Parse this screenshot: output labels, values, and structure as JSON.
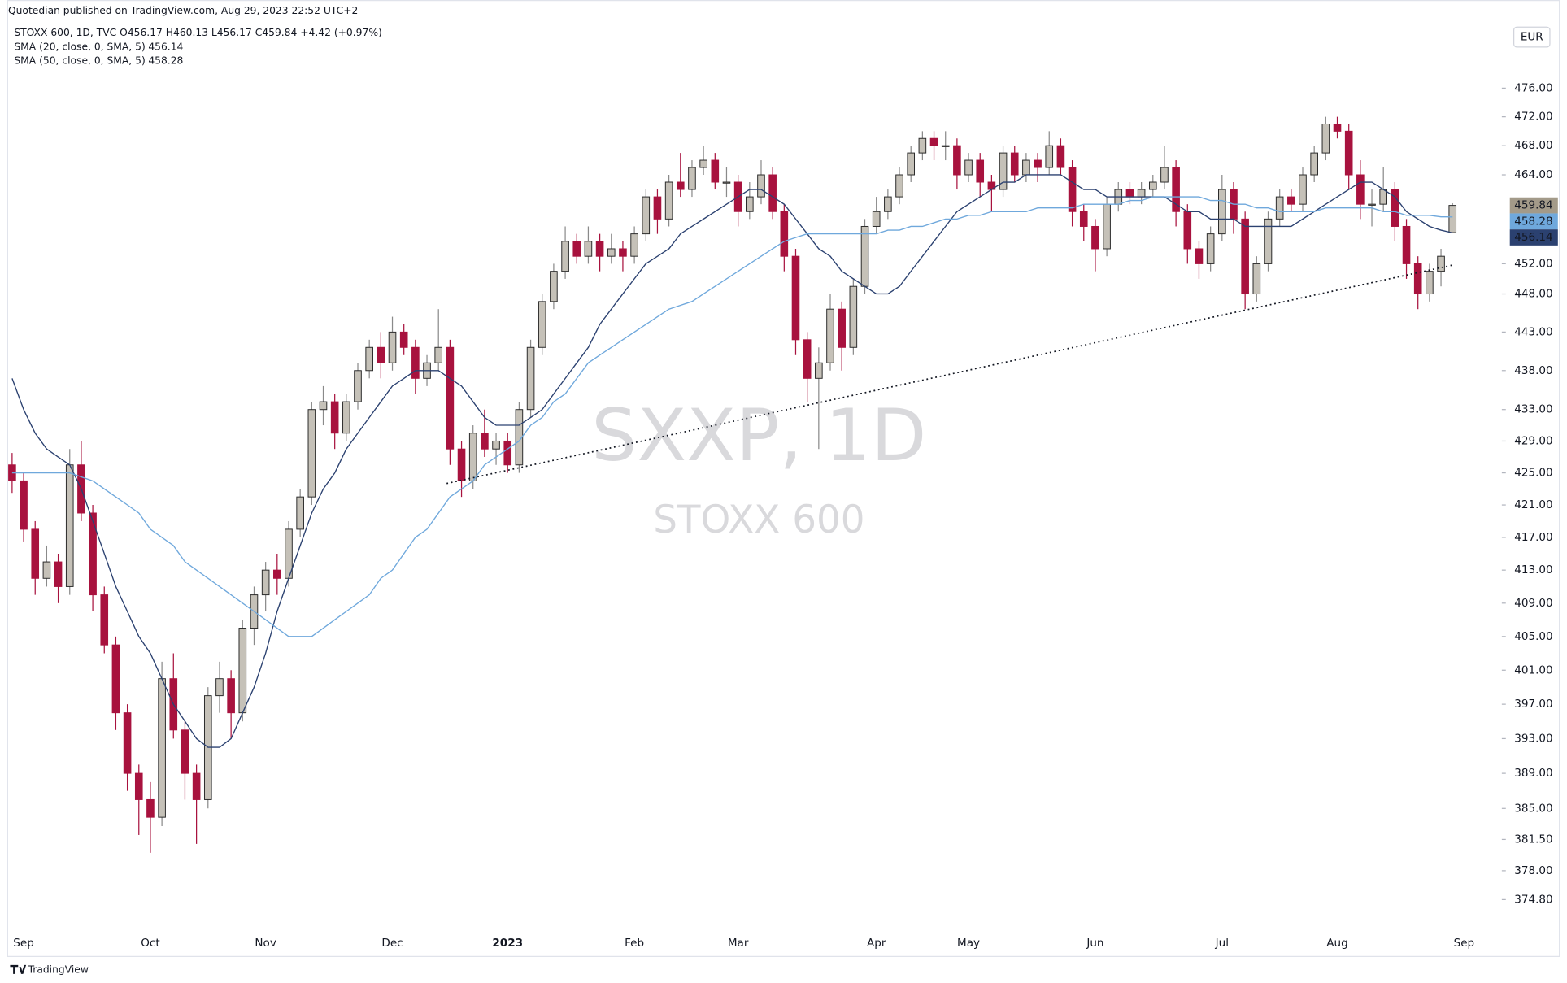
{
  "header": {
    "published": "Quotedian published on TradingView.com, Aug 29, 2023 22:52 UTC+2",
    "symbol_line": "STOXX 600, 1D, TVC  O456.17  H460.13  L456.17  C459.84  +4.42 (+0.97%)"
  },
  "footer": {
    "brand": "TradingView"
  },
  "chart_data": {
    "type": "candlestick",
    "watermark": "SXXP, 1D",
    "watermark_subtitle": "STOXX 600",
    "currency": "EUR",
    "log_scale": true,
    "grid": false,
    "up_color": "#c5c1b8",
    "down_color": "#a8123e",
    "tag_color": "#a39a89",
    "ylim": [
      371.9,
      487.8
    ],
    "yticks": [
      {
        "value": 476,
        "label": "476.00"
      },
      {
        "value": 472,
        "label": "472.00"
      },
      {
        "value": 468,
        "label": "468.00"
      },
      {
        "value": 464,
        "label": "464.00"
      },
      {
        "value": 452,
        "label": "452.00"
      },
      {
        "value": 448,
        "label": "448.00"
      },
      {
        "value": 443,
        "label": "443.00"
      },
      {
        "value": 438,
        "label": "438.00"
      },
      {
        "value": 433,
        "label": "433.00"
      },
      {
        "value": 429,
        "label": "429.00"
      },
      {
        "value": 425,
        "label": "425.00"
      },
      {
        "value": 421,
        "label": "421.00"
      },
      {
        "value": 417,
        "label": "417.00"
      },
      {
        "value": 413,
        "label": "413.00"
      },
      {
        "value": 409,
        "label": "409.00"
      },
      {
        "value": 405,
        "label": "405.00"
      },
      {
        "value": 401,
        "label": "401.00"
      },
      {
        "value": 397,
        "label": "397.00"
      },
      {
        "value": 393,
        "label": "393.00"
      },
      {
        "value": 389,
        "label": "389.00"
      },
      {
        "value": 385,
        "label": "385.00"
      },
      {
        "value": 381.5,
        "label": "381.50"
      },
      {
        "value": 378,
        "label": "378.00"
      },
      {
        "value": 374.8,
        "label": "374.80"
      }
    ],
    "categories": [
      null,
      "Sep",
      null,
      null,
      null,
      null,
      null,
      null,
      null,
      null,
      null,
      null,
      "Oct",
      null,
      null,
      null,
      null,
      null,
      null,
      null,
      null,
      null,
      "Nov",
      null,
      null,
      null,
      null,
      null,
      null,
      null,
      null,
      null,
      null,
      "Dec",
      null,
      null,
      null,
      null,
      null,
      null,
      null,
      null,
      null,
      "2023",
      null,
      null,
      null,
      null,
      null,
      null,
      null,
      null,
      null,
      null,
      "Feb",
      null,
      null,
      null,
      null,
      null,
      null,
      null,
      null,
      "Mar",
      null,
      null,
      null,
      null,
      null,
      null,
      null,
      null,
      null,
      null,
      null,
      "Apr",
      null,
      null,
      null,
      null,
      null,
      null,
      null,
      "May",
      null,
      null,
      null,
      null,
      null,
      null,
      null,
      null,
      null,
      null,
      "Jun",
      null,
      null,
      null,
      null,
      null,
      null,
      null,
      null,
      null,
      null,
      "Jul",
      null,
      null,
      null,
      null,
      null,
      null,
      null,
      null,
      null,
      "Aug",
      null,
      null,
      null,
      null,
      null,
      null,
      null,
      null,
      null,
      null,
      "Sep"
    ],
    "open": [
      426,
      424,
      418,
      412,
      414,
      411,
      426,
      420,
      410,
      404,
      396,
      389,
      386,
      384,
      400,
      394,
      389,
      386,
      398,
      400,
      396,
      406,
      410,
      413,
      412,
      418,
      422,
      433,
      434,
      430,
      434,
      438,
      441,
      439,
      443,
      441,
      437,
      439,
      441,
      428,
      424,
      430,
      428,
      429,
      426,
      433,
      441,
      447,
      451,
      455,
      453,
      455,
      453,
      454,
      453,
      456,
      461,
      458,
      463,
      462,
      465,
      466,
      463,
      463,
      459,
      461,
      464,
      459,
      453,
      442,
      437,
      439,
      446,
      441,
      449,
      457,
      459,
      461,
      464,
      467,
      469,
      468,
      468,
      464,
      466,
      463,
      462,
      467,
      464,
      466,
      465,
      468,
      465,
      459,
      457,
      454,
      460,
      462,
      461,
      462,
      463,
      465,
      459,
      454,
      452,
      456,
      462,
      458,
      448,
      452,
      458,
      461,
      460,
      464,
      467,
      471,
      470,
      464,
      460,
      460,
      462,
      457,
      452,
      448,
      451,
      456.17,
      null
    ],
    "high": [
      427.5,
      425,
      419,
      416,
      415,
      428,
      429,
      421,
      411,
      405,
      397,
      390,
      388,
      402,
      403,
      395,
      390,
      399,
      402,
      401,
      407,
      411,
      414,
      415,
      419,
      423,
      434,
      436,
      435,
      435,
      439,
      442,
      443,
      445,
      444,
      442,
      440,
      446,
      442,
      429,
      431,
      433,
      430,
      430,
      434,
      442,
      448,
      452,
      457,
      456,
      457,
      456,
      456,
      455,
      457,
      462,
      462,
      464,
      467,
      466,
      468,
      467,
      465,
      464,
      463,
      466,
      465,
      460,
      454,
      443,
      441,
      448,
      447,
      450,
      458,
      461,
      462,
      465,
      468,
      470,
      470,
      470,
      469,
      467,
      467,
      464,
      468,
      468,
      467,
      467,
      470,
      469,
      466,
      460,
      458,
      461,
      463,
      463,
      463,
      464,
      468,
      466,
      460,
      455,
      457,
      464,
      463,
      459,
      453,
      459,
      462,
      462,
      465,
      468,
      472,
      472,
      471,
      466,
      462,
      465,
      463,
      458,
      453,
      452,
      454,
      460.13,
      null
    ],
    "low": [
      422.5,
      416.5,
      410,
      411,
      409,
      410,
      419,
      408,
      403,
      394,
      387,
      382,
      380,
      383,
      393,
      386,
      381,
      385,
      396,
      393,
      395,
      404,
      408,
      410,
      411,
      417,
      421,
      431,
      428,
      429,
      433,
      437,
      437,
      438,
      440,
      435,
      436,
      438,
      426,
      422,
      423,
      427,
      426,
      425,
      425,
      432,
      440,
      446,
      450,
      452,
      452,
      451,
      452,
      451,
      452,
      455,
      456,
      457,
      461,
      461,
      464,
      462,
      461,
      457,
      458,
      460,
      458,
      451,
      440,
      434,
      428,
      438,
      438,
      440,
      448,
      456,
      458,
      460,
      463,
      466,
      466,
      466,
      462,
      463,
      461,
      459,
      461,
      463,
      463,
      463,
      464,
      464,
      457,
      455,
      451,
      453,
      459,
      460,
      460,
      461,
      462,
      457,
      452,
      450,
      451,
      455,
      456,
      446,
      447,
      451,
      457,
      459,
      459,
      463,
      466,
      469,
      462,
      458,
      457,
      459,
      455,
      450,
      446,
      447,
      449,
      456.17,
      null
    ],
    "close": [
      424,
      418,
      412,
      414,
      411,
      426,
      420,
      410,
      404,
      396,
      389,
      386,
      384,
      400,
      394,
      389,
      386,
      398,
      400,
      396,
      406,
      410,
      413,
      412,
      418,
      422,
      433,
      434,
      430,
      434,
      438,
      441,
      439,
      443,
      441,
      437,
      439,
      441,
      428,
      424,
      430,
      428,
      429,
      426,
      433,
      441,
      447,
      451,
      455,
      453,
      455,
      453,
      454,
      453,
      456,
      461,
      458,
      463,
      462,
      465,
      466,
      463,
      463,
      459,
      461,
      464,
      459,
      453,
      442,
      437,
      439,
      446,
      441,
      449,
      457,
      459,
      461,
      464,
      467,
      469,
      468,
      468,
      464,
      466,
      463,
      462,
      467,
      464,
      466,
      465,
      468,
      465,
      459,
      457,
      454,
      460,
      462,
      461,
      462,
      463,
      465,
      459,
      454,
      452,
      456,
      462,
      458,
      448,
      452,
      458,
      461,
      460,
      464,
      467,
      471,
      470,
      464,
      460,
      460,
      462,
      457,
      452,
      448,
      451,
      453,
      459.84,
      null
    ],
    "series": [
      {
        "name": "SMA (20, close, 0, SMA, 5)",
        "color": "#2b4170",
        "values": [
          437,
          433,
          430,
          428,
          427,
          426,
          423,
          419,
          415,
          411,
          408,
          405,
          403,
          400,
          397,
          395,
          393,
          392,
          392,
          393,
          396,
          399,
          403,
          408,
          412,
          416,
          420,
          423,
          425,
          428,
          430,
          432,
          434,
          436,
          437,
          438,
          438,
          438,
          437,
          436,
          434,
          432,
          431,
          431,
          431,
          432,
          433,
          435,
          437,
          439,
          441,
          444,
          446,
          448,
          450,
          452,
          453,
          454,
          456,
          457,
          458,
          459,
          460,
          461,
          462,
          462,
          461,
          460,
          458,
          456,
          454,
          453,
          451,
          450,
          449,
          448,
          448,
          449,
          451,
          453,
          455,
          457,
          459,
          460,
          461,
          462,
          463,
          463,
          464,
          464,
          464,
          464,
          463,
          462,
          462,
          461,
          461,
          461,
          461,
          461,
          461,
          460,
          459,
          459,
          458,
          458,
          458,
          457,
          457,
          457,
          457,
          457,
          458,
          459,
          460,
          461,
          462,
          463,
          463,
          462,
          461,
          459,
          458,
          457,
          456.5,
          456.14,
          null
        ]
      },
      {
        "name": "SMA (50, close, 0, SMA, 5)",
        "color": "#6fa8dc",
        "values": [
          425,
          425,
          425,
          425,
          425,
          425,
          424.5,
          424,
          423,
          422,
          421,
          420,
          418,
          417,
          416,
          414,
          413,
          412,
          411,
          410,
          409,
          408,
          407,
          406,
          405,
          405,
          405,
          406,
          407,
          408,
          409,
          410,
          412,
          413,
          415,
          417,
          418,
          420,
          422,
          423,
          424,
          426,
          427,
          428,
          429,
          431,
          432,
          434,
          435,
          437,
          439,
          440,
          441,
          442,
          443,
          444,
          445,
          446,
          446.5,
          447,
          448,
          449,
          450,
          451,
          452,
          453,
          454,
          455,
          455.5,
          456,
          456,
          456,
          456,
          456,
          456,
          456,
          456.5,
          456.5,
          457,
          457,
          457.5,
          458,
          458,
          458.5,
          458.5,
          459,
          459,
          459,
          459,
          459.5,
          459.5,
          459.5,
          459.5,
          460,
          460,
          460,
          460,
          460.5,
          460.5,
          461,
          461,
          461,
          461,
          461,
          460.5,
          460.5,
          460,
          460,
          459.5,
          459.5,
          459,
          459,
          459,
          459,
          459.5,
          459.5,
          459.5,
          459.5,
          459.5,
          459,
          459,
          458.5,
          458.5,
          458.5,
          458.3,
          458.28,
          null
        ]
      }
    ]
  }
}
